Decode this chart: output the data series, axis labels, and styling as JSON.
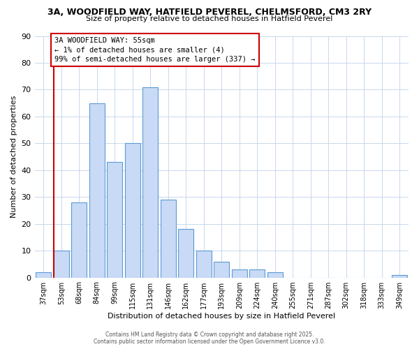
{
  "title": "3A, WOODFIELD WAY, HATFIELD PEVEREL, CHELMSFORD, CM3 2RY",
  "subtitle": "Size of property relative to detached houses in Hatfield Peverel",
  "xlabel": "Distribution of detached houses by size in Hatfield Peverel",
  "ylabel": "Number of detached properties",
  "bar_labels": [
    "37sqm",
    "53sqm",
    "68sqm",
    "84sqm",
    "99sqm",
    "115sqm",
    "131sqm",
    "146sqm",
    "162sqm",
    "177sqm",
    "193sqm",
    "209sqm",
    "224sqm",
    "240sqm",
    "255sqm",
    "271sqm",
    "287sqm",
    "302sqm",
    "318sqm",
    "333sqm",
    "349sqm"
  ],
  "bar_values": [
    2,
    10,
    28,
    65,
    43,
    50,
    71,
    29,
    18,
    10,
    6,
    3,
    3,
    2,
    0,
    0,
    0,
    0,
    0,
    0,
    1
  ],
  "bar_color": "#c8daf5",
  "bar_edge_color": "#5b9bd5",
  "ylim": [
    0,
    90
  ],
  "yticks": [
    0,
    10,
    20,
    30,
    40,
    50,
    60,
    70,
    80,
    90
  ],
  "property_line_color": "#cc0000",
  "annotation_title": "3A WOODFIELD WAY: 55sqm",
  "annotation_line1": "← 1% of detached houses are smaller (4)",
  "annotation_line2": "99% of semi-detached houses are larger (337) →",
  "footer_line1": "Contains HM Land Registry data © Crown copyright and database right 2025.",
  "footer_line2": "Contains public sector information licensed under the Open Government Licence v3.0.",
  "background_color": "#ffffff",
  "grid_color": "#c8d8ec"
}
